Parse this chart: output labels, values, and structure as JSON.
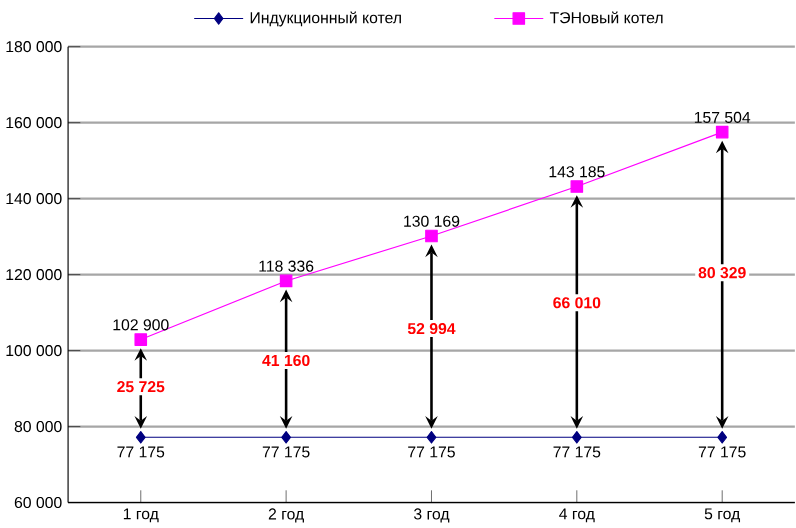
{
  "chart_data": {
    "type": "line",
    "categories": [
      "1 год",
      "2 год",
      "3 год",
      "4 год",
      "5 год"
    ],
    "series": [
      {
        "name": "Индукционный котел",
        "color": "#000080",
        "marker": "diamond",
        "values": [
          77175,
          77175,
          77175,
          77175,
          77175
        ],
        "value_labels": [
          "77 175",
          "77 175",
          "77 175",
          "77 175",
          "77 175"
        ]
      },
      {
        "name": "ТЭНовый котел",
        "color": "#ff00ff",
        "marker": "square",
        "values": [
          102900,
          118336,
          130169,
          143185,
          157504
        ],
        "value_labels": [
          "102 900",
          "118 336",
          "130 169",
          "143 185",
          "157 504"
        ]
      }
    ],
    "ylim": [
      60000,
      180000
    ],
    "yticks": [
      {
        "value": 60000,
        "label": "60 000"
      },
      {
        "value": 80000,
        "label": "80 000"
      },
      {
        "value": 100000,
        "label": "100 000"
      },
      {
        "value": 120000,
        "label": "120 000"
      },
      {
        "value": 140000,
        "label": "140 000"
      },
      {
        "value": 160000,
        "label": "160 000"
      },
      {
        "value": 180000,
        "label": "180 000"
      }
    ],
    "grid": "y",
    "legend": "top",
    "annotations": [
      {
        "text": "25 725",
        "x": "1 год",
        "y": 90500
      },
      {
        "text": "41 160",
        "x": "2 год",
        "y": 97400
      },
      {
        "text": "52 994",
        "x": "3 год",
        "y": 105800
      },
      {
        "text": "66 010",
        "x": "4 год",
        "y": 112600
      },
      {
        "text": "80 329",
        "x": "5 год",
        "y": 120500
      }
    ]
  }
}
